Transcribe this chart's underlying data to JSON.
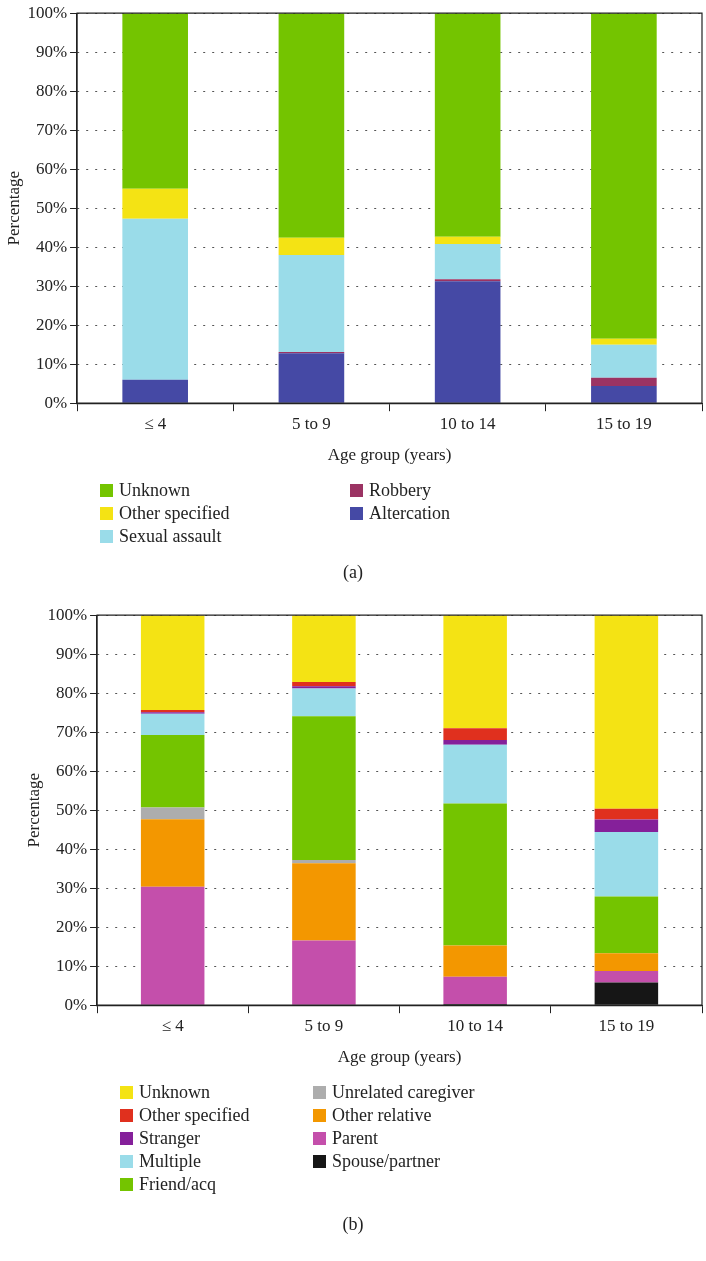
{
  "chart_data": [
    {
      "type": "bar",
      "stacked": true,
      "xlabel": "Age group (years)",
      "ylabel": "Percentage",
      "categories": [
        "≤ 4",
        "5 to 9",
        "10 to 14",
        "15 to 19"
      ],
      "series": [
        {
          "name": "Altercation",
          "color": "#4549a5",
          "values": [
            6,
            12.8,
            31.3,
            4.4
          ]
        },
        {
          "name": "Robbery",
          "color": "#9b3363",
          "values": [
            0,
            0.3,
            0.5,
            2.1
          ]
        },
        {
          "name": "Sexual assault",
          "color": "#9adce9",
          "values": [
            41.3,
            24.9,
            9,
            8.5
          ]
        },
        {
          "name": "Other specified",
          "color": "#f4e314",
          "values": [
            7.7,
            4.4,
            1.9,
            1.5
          ]
        },
        {
          "name": "Unknown",
          "color": "#74c400",
          "values": [
            45,
            57.6,
            57.3,
            83.5
          ]
        }
      ],
      "ylim": [
        0,
        100
      ],
      "yticks": [
        {
          "value": 0,
          "label": "0%"
        },
        {
          "value": 10,
          "label": "10%"
        },
        {
          "value": 20,
          "label": "20%"
        },
        {
          "value": 30,
          "label": "30%"
        },
        {
          "value": 40,
          "label": "40%"
        },
        {
          "value": 50,
          "label": "50%"
        },
        {
          "value": 60,
          "label": "60%"
        },
        {
          "value": 70,
          "label": "70%"
        },
        {
          "value": 80,
          "label": "80%"
        },
        {
          "value": 90,
          "label": "90%"
        },
        {
          "value": 100,
          "label": "100%"
        }
      ],
      "grid": "y",
      "legend": "bottom",
      "annotations": [
        "(a)"
      ]
    },
    {
      "type": "bar",
      "stacked": true,
      "xlabel": "Age group (years)",
      "ylabel": "Percentage",
      "categories": [
        "≤ 4",
        "5 to 9",
        "10 to 14",
        "15 to 19"
      ],
      "series": [
        {
          "name": "Spouse/partner",
          "color": "#161616",
          "values": [
            0,
            0,
            0.3,
            5.8
          ]
        },
        {
          "name": "Parent",
          "color": "#c44fab",
          "values": [
            30.4,
            16.6,
            7,
            3
          ]
        },
        {
          "name": "Other relative",
          "color": "#f39700",
          "values": [
            17.3,
            19.8,
            8,
            4.5
          ]
        },
        {
          "name": "Unrelated caregiver",
          "color": "#adadad",
          "values": [
            3,
            0.8,
            0,
            0
          ]
        },
        {
          "name": "Friend/acq",
          "color": "#74c400",
          "values": [
            18.6,
            36.9,
            36.4,
            14.6
          ]
        },
        {
          "name": "Multiple",
          "color": "#9adce9",
          "values": [
            5.4,
            7.1,
            15.1,
            16.5
          ]
        },
        {
          "name": "Stranger",
          "color": "#85209a",
          "values": [
            0.4,
            0.6,
            1.2,
            3.2
          ]
        },
        {
          "name": "Other specified",
          "color": "#e0301e",
          "values": [
            0.6,
            1.1,
            3,
            2.8
          ]
        },
        {
          "name": "Unknown",
          "color": "#f4e314",
          "values": [
            24.3,
            17.1,
            29,
            49.6
          ]
        }
      ],
      "ylim": [
        0,
        100
      ],
      "yticks": [
        {
          "value": 0,
          "label": "0%"
        },
        {
          "value": 10,
          "label": "10%"
        },
        {
          "value": 20,
          "label": "20%"
        },
        {
          "value": 30,
          "label": "30%"
        },
        {
          "value": 40,
          "label": "40%"
        },
        {
          "value": 50,
          "label": "50%"
        },
        {
          "value": 60,
          "label": "60%"
        },
        {
          "value": 70,
          "label": "70%"
        },
        {
          "value": 80,
          "label": "80%"
        },
        {
          "value": 90,
          "label": "90%"
        },
        {
          "value": 100,
          "label": "100%"
        }
      ],
      "grid": "y",
      "legend": "bottom",
      "annotations": [
        "(b)"
      ]
    }
  ]
}
